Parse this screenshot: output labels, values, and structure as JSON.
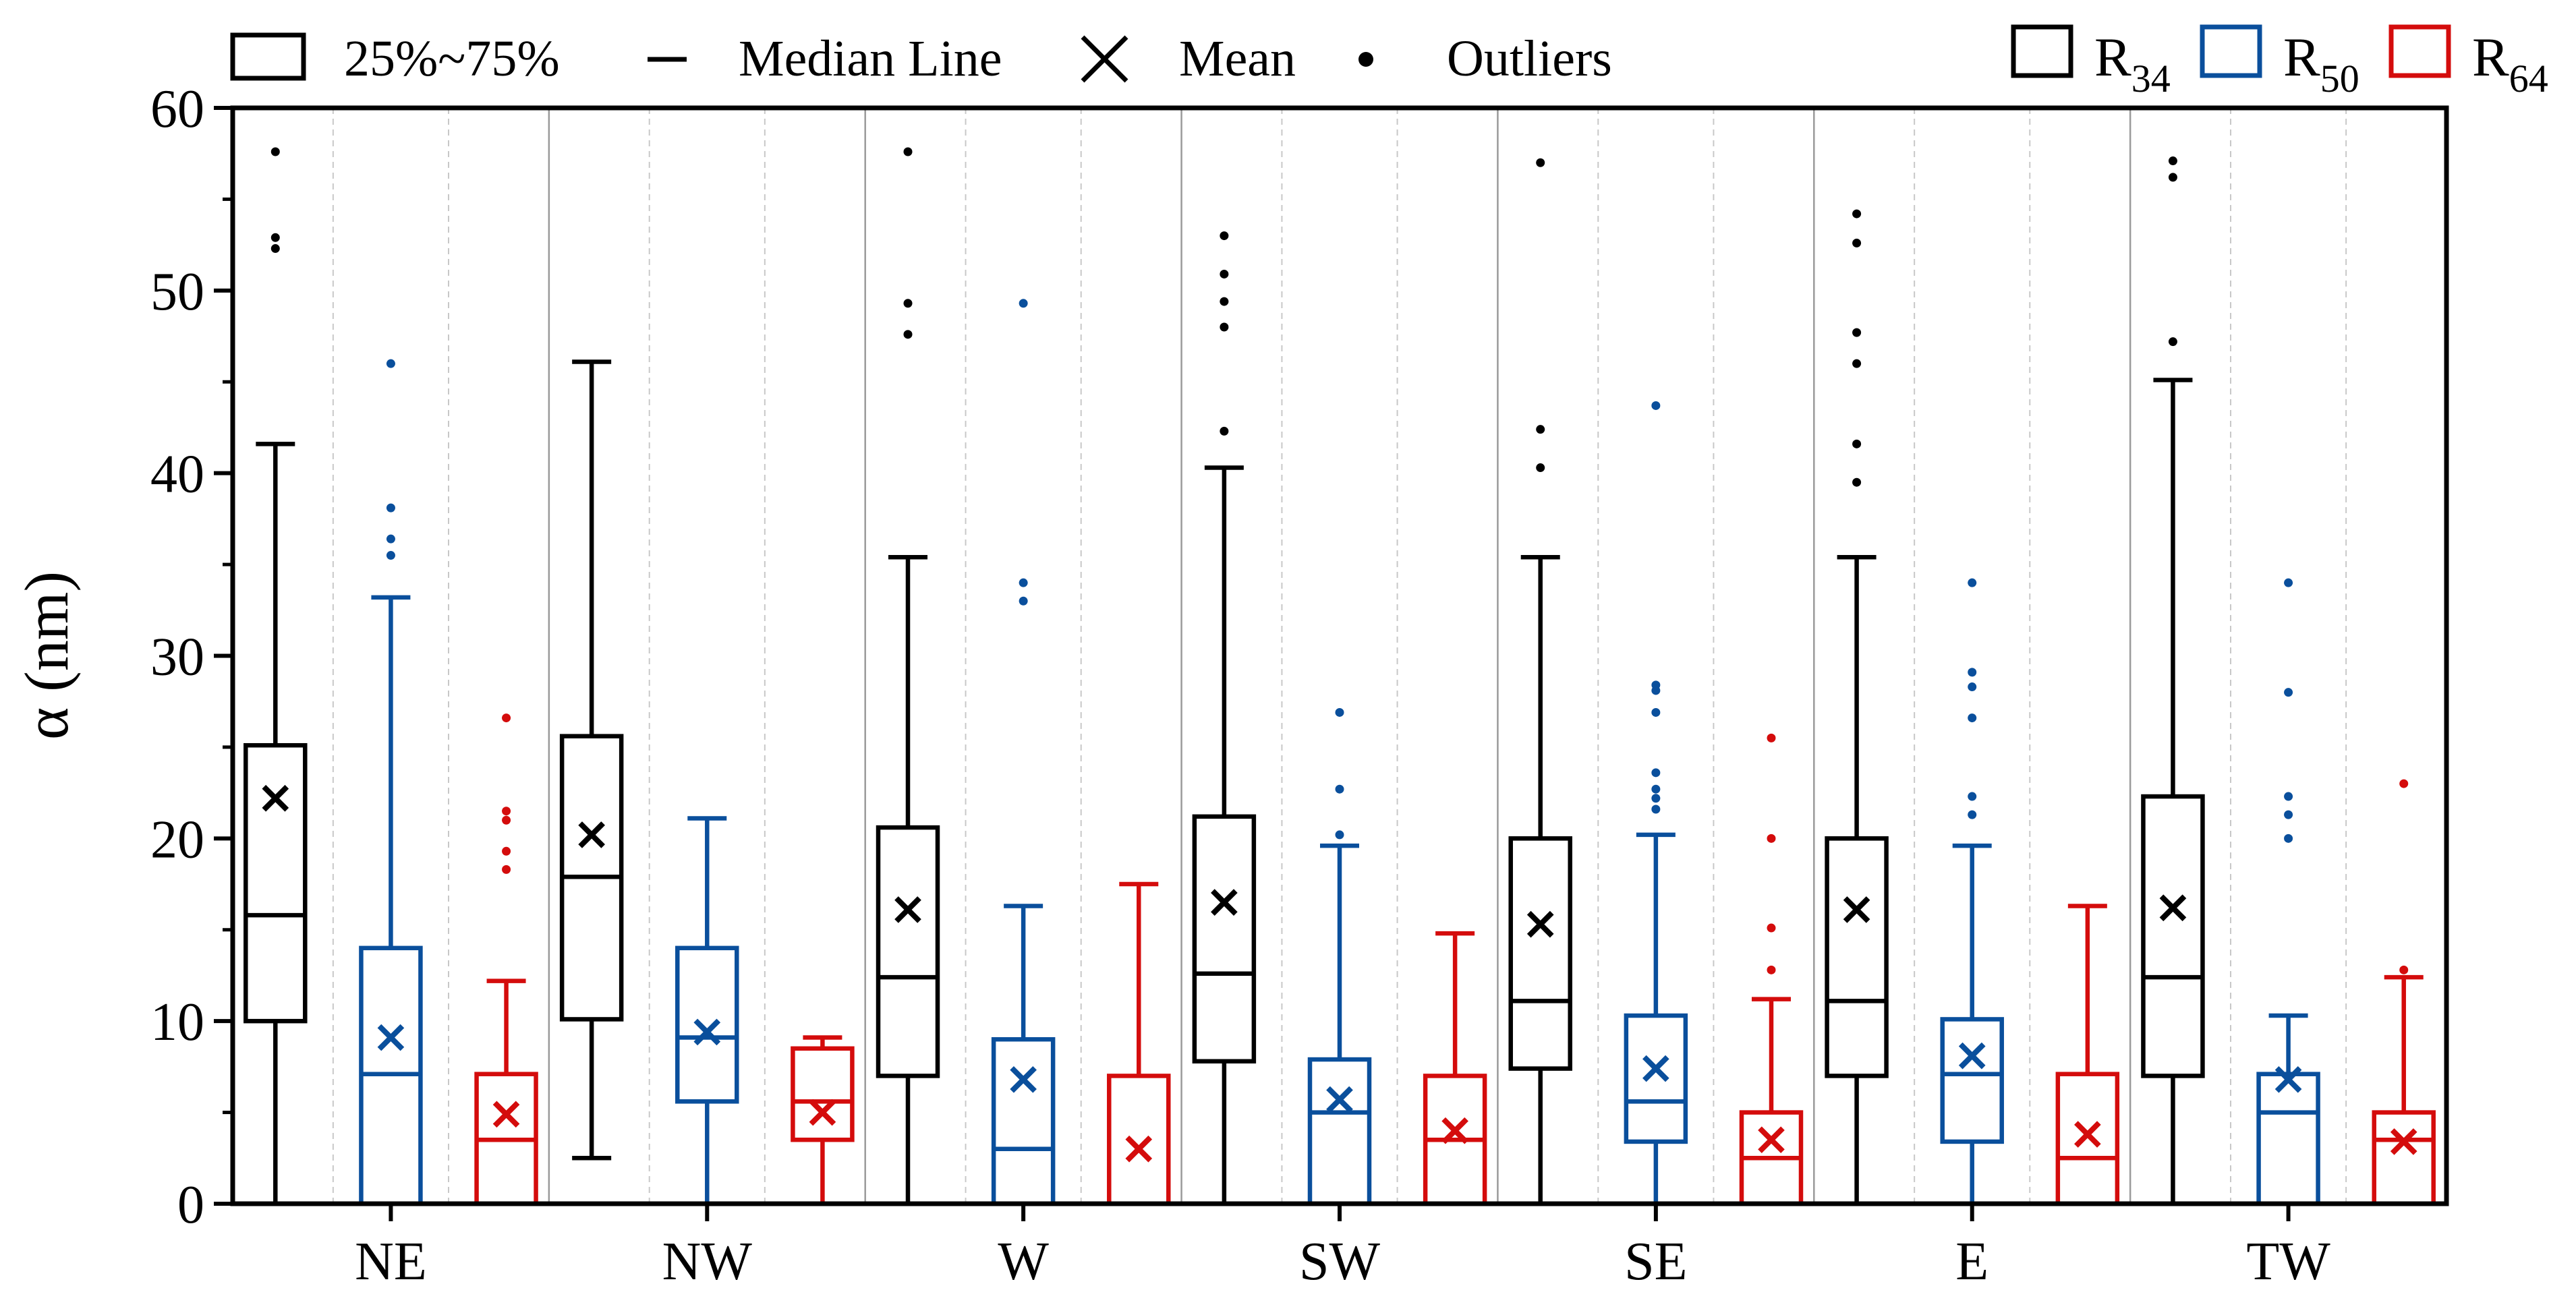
{
  "chart_data": {
    "type": "box",
    "ylabel": "α (nm)",
    "xlabel": "",
    "ylim": [
      0,
      60
    ],
    "yticks": [
      0,
      10,
      20,
      30,
      40,
      50,
      60
    ],
    "yticks_minor": [
      5,
      15,
      25,
      35,
      45,
      55
    ],
    "ytick_labels": [
      "0",
      "10",
      "20",
      "30",
      "40",
      "50",
      "60"
    ],
    "categories": [
      "NE",
      "NW",
      "W",
      "SW",
      "SE",
      "E",
      "TW"
    ],
    "legend_stats": {
      "box": "25%~75%",
      "median": "Median Line",
      "mean": "Mean",
      "outliers": "Outliers"
    },
    "series": [
      {
        "name": "R34",
        "name_main": "R",
        "name_sub": "34",
        "color": "#000000",
        "boxes": [
          {
            "min": 0,
            "q1": 10,
            "median": 15.8,
            "q3": 25.1,
            "max": 41.6,
            "mean": 22.2,
            "outliers": [
              52.3,
              52.9,
              57.6
            ]
          },
          {
            "min": 2.5,
            "q1": 10.1,
            "median": 17.9,
            "q3": 25.6,
            "max": 46.1,
            "mean": 20.2,
            "outliers": []
          },
          {
            "min": 0,
            "q1": 7,
            "median": 12.4,
            "q3": 20.6,
            "max": 35.4,
            "mean": 16.1,
            "outliers": [
              47.6,
              49.3,
              57.6
            ]
          },
          {
            "min": 0,
            "q1": 7.8,
            "median": 12.6,
            "q3": 21.2,
            "max": 40.3,
            "mean": 16.5,
            "outliers": [
              42.3,
              48.0,
              49.4,
              50.9,
              53.0
            ]
          },
          {
            "min": 0,
            "q1": 7.4,
            "median": 11.1,
            "q3": 20.0,
            "max": 35.4,
            "mean": 15.3,
            "outliers": [
              40.3,
              42.4,
              57.0
            ]
          },
          {
            "min": 0,
            "q1": 7,
            "median": 11.1,
            "q3": 20.0,
            "max": 35.4,
            "mean": 16.1,
            "outliers": [
              39.5,
              41.6,
              46.0,
              47.7,
              52.6,
              54.2
            ]
          },
          {
            "min": 0,
            "q1": 7,
            "median": 12.4,
            "q3": 22.3,
            "max": 45.1,
            "mean": 16.2,
            "outliers": [
              47.2,
              56.2,
              57.1
            ]
          }
        ]
      },
      {
        "name": "R50",
        "name_main": "R",
        "name_sub": "50",
        "color": "#0a4f9c",
        "boxes": [
          {
            "min": 0,
            "q1": 0,
            "median": 7.1,
            "q3": 14.0,
            "max": 33.2,
            "mean": 9.1,
            "outliers": [
              35.5,
              36.4,
              38.1,
              46.0
            ]
          },
          {
            "min": 0,
            "q1": 5.6,
            "median": 9.1,
            "q3": 14.0,
            "max": 21.1,
            "mean": 9.4,
            "outliers": []
          },
          {
            "min": 0,
            "q1": 0,
            "median": 3.0,
            "q3": 9.0,
            "max": 16.3,
            "mean": 6.8,
            "outliers": [
              33.0,
              34.0,
              49.3
            ]
          },
          {
            "min": 0,
            "q1": 0,
            "median": 5.0,
            "q3": 7.9,
            "max": 19.6,
            "mean": 5.7,
            "outliers": [
              20.2,
              22.7,
              26.9
            ]
          },
          {
            "min": 0,
            "q1": 3.4,
            "median": 5.6,
            "q3": 10.3,
            "max": 20.2,
            "mean": 7.4,
            "outliers": [
              21.6,
              22.2,
              22.7,
              23.6,
              26.9,
              28.1,
              28.4,
              43.7
            ]
          },
          {
            "min": 0,
            "q1": 3.4,
            "median": 7.1,
            "q3": 10.1,
            "max": 19.6,
            "mean": 8.1,
            "outliers": [
              21.3,
              22.3,
              26.6,
              28.3,
              29.1,
              34.0
            ]
          },
          {
            "min": 0,
            "q1": 0,
            "median": 5.0,
            "q3": 7.1,
            "max": 10.3,
            "mean": 6.8,
            "outliers": [
              20.0,
              21.3,
              22.3,
              28.0,
              34.0
            ]
          }
        ]
      },
      {
        "name": "R64",
        "name_main": "R",
        "name_sub": "64",
        "color": "#d40c0c",
        "boxes": [
          {
            "min": 0,
            "q1": 0,
            "median": 3.5,
            "q3": 7.1,
            "max": 12.2,
            "mean": 4.9,
            "outliers": [
              18.3,
              19.3,
              21.0,
              21.5,
              26.6
            ]
          },
          {
            "min": 0,
            "q1": 3.5,
            "median": 5.6,
            "q3": 8.5,
            "max": 9.1,
            "mean": 5.0,
            "outliers": []
          },
          {
            "min": 0,
            "q1": 0,
            "median": 0,
            "q3": 7.0,
            "max": 17.5,
            "mean": 3.0,
            "outliers": []
          },
          {
            "min": 0,
            "q1": 0,
            "median": 3.5,
            "q3": 7.0,
            "max": 14.8,
            "mean": 4.0,
            "outliers": []
          },
          {
            "min": 0,
            "q1": 0,
            "median": 2.5,
            "q3": 5.0,
            "max": 11.2,
            "mean": 3.5,
            "outliers": [
              12.8,
              15.1,
              20.0,
              25.5
            ]
          },
          {
            "min": 0,
            "q1": 0,
            "median": 2.5,
            "q3": 7.1,
            "max": 16.3,
            "mean": 3.8,
            "outliers": []
          },
          {
            "min": 0,
            "q1": 0,
            "median": 3.5,
            "q3": 5.0,
            "max": 12.4,
            "mean": 3.4,
            "outliers": [
              12.8,
              23.0
            ]
          }
        ]
      }
    ]
  }
}
